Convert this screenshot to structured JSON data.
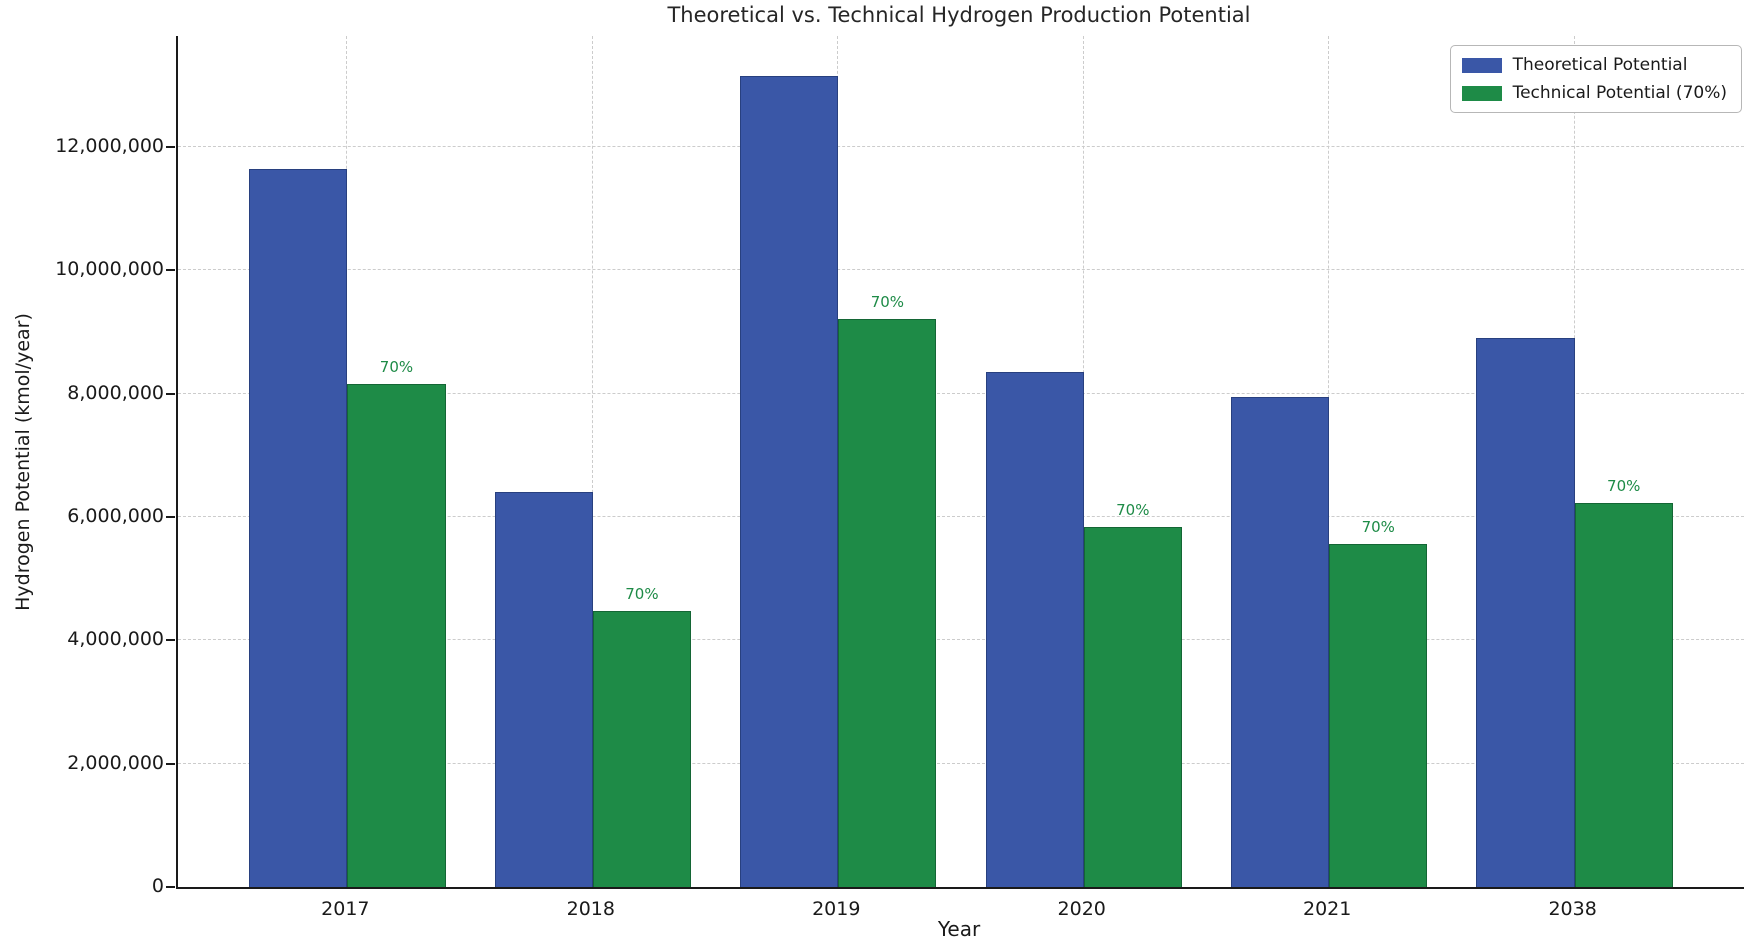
{
  "chart_data": {
    "type": "bar",
    "title": "Theoretical vs. Technical Hydrogen Production Potential",
    "xlabel": "Year",
    "ylabel": "Hydrogen Potential (kmol/year)",
    "categories": [
      "2017",
      "2018",
      "2019",
      "2020",
      "2021",
      "2038"
    ],
    "series": [
      {
        "name": "Theoretical Potential",
        "color": "#3A57A7",
        "edge_color": "#28407f",
        "values": [
          11650000,
          6400000,
          13150000,
          8350000,
          7950000,
          8900000
        ]
      },
      {
        "name": "Technical Potential (70%)",
        "color": "#1E8B47",
        "edge_color": "#146635",
        "values": [
          8155000,
          4480000,
          9205000,
          5845000,
          5565000,
          6230000
        ],
        "bar_labels": [
          "70%",
          "70%",
          "70%",
          "70%",
          "70%",
          "70%"
        ]
      }
    ],
    "annotation_color": "#1E8B47",
    "ylim": [
      0,
      13800000
    ],
    "yticks": [
      0,
      2000000,
      4000000,
      6000000,
      8000000,
      10000000,
      12000000
    ],
    "ytick_labels": [
      "0",
      "2,000,000",
      "4,000,000",
      "6,000,000",
      "8,000,000",
      "10,000,000",
      "12,000,000"
    ],
    "grid": "dashed-both-axes",
    "legend_position": "upper right"
  },
  "legend": {
    "items": [
      {
        "label": "Theoretical Potential",
        "color": "#3A57A7"
      },
      {
        "label": "Technical Potential (70%)",
        "color": "#1E8B47"
      }
    ]
  }
}
